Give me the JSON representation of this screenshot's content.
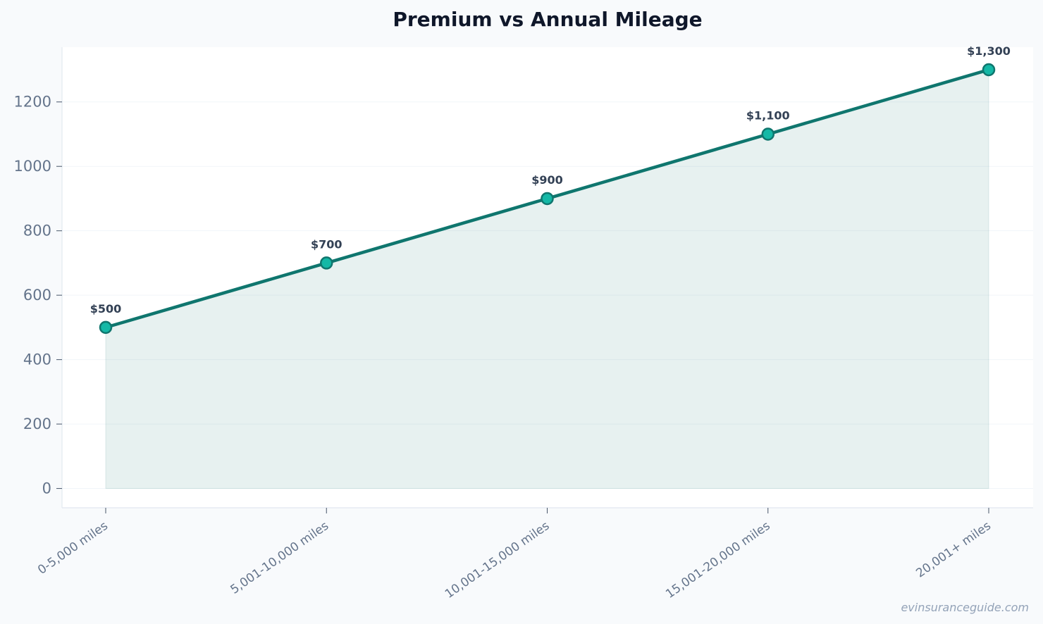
{
  "chart_data": {
    "type": "area",
    "title": "Premium vs Annual Mileage",
    "xlabel": "",
    "ylabel": "",
    "categories": [
      "0-5,000 miles",
      "5,001-10,000 miles",
      "10,001-15,000 miles",
      "15,001-20,000 miles",
      "20,001+ miles"
    ],
    "series": [
      {
        "values": [
          500,
          700,
          900,
          1100,
          1300
        ],
        "data_labels": [
          "$500",
          "$700",
          "$900",
          "$1,100",
          "$1,300"
        ]
      }
    ],
    "ylim": [
      -60,
      1370
    ],
    "yticks": [
      0,
      200,
      400,
      600,
      800,
      1000,
      1200
    ],
    "grid": "horizontal",
    "legend": "none",
    "colors": {
      "line": "#0f766e",
      "marker_fill": "#14b8a6",
      "area_fill": "#0f766e",
      "grid": "#f1f5f9",
      "axis": "#e2e8f0",
      "plot_background": "#ffffff",
      "page_background": "#f8fafc"
    }
  },
  "footer": {
    "watermark": "evinsuranceguide.com"
  }
}
